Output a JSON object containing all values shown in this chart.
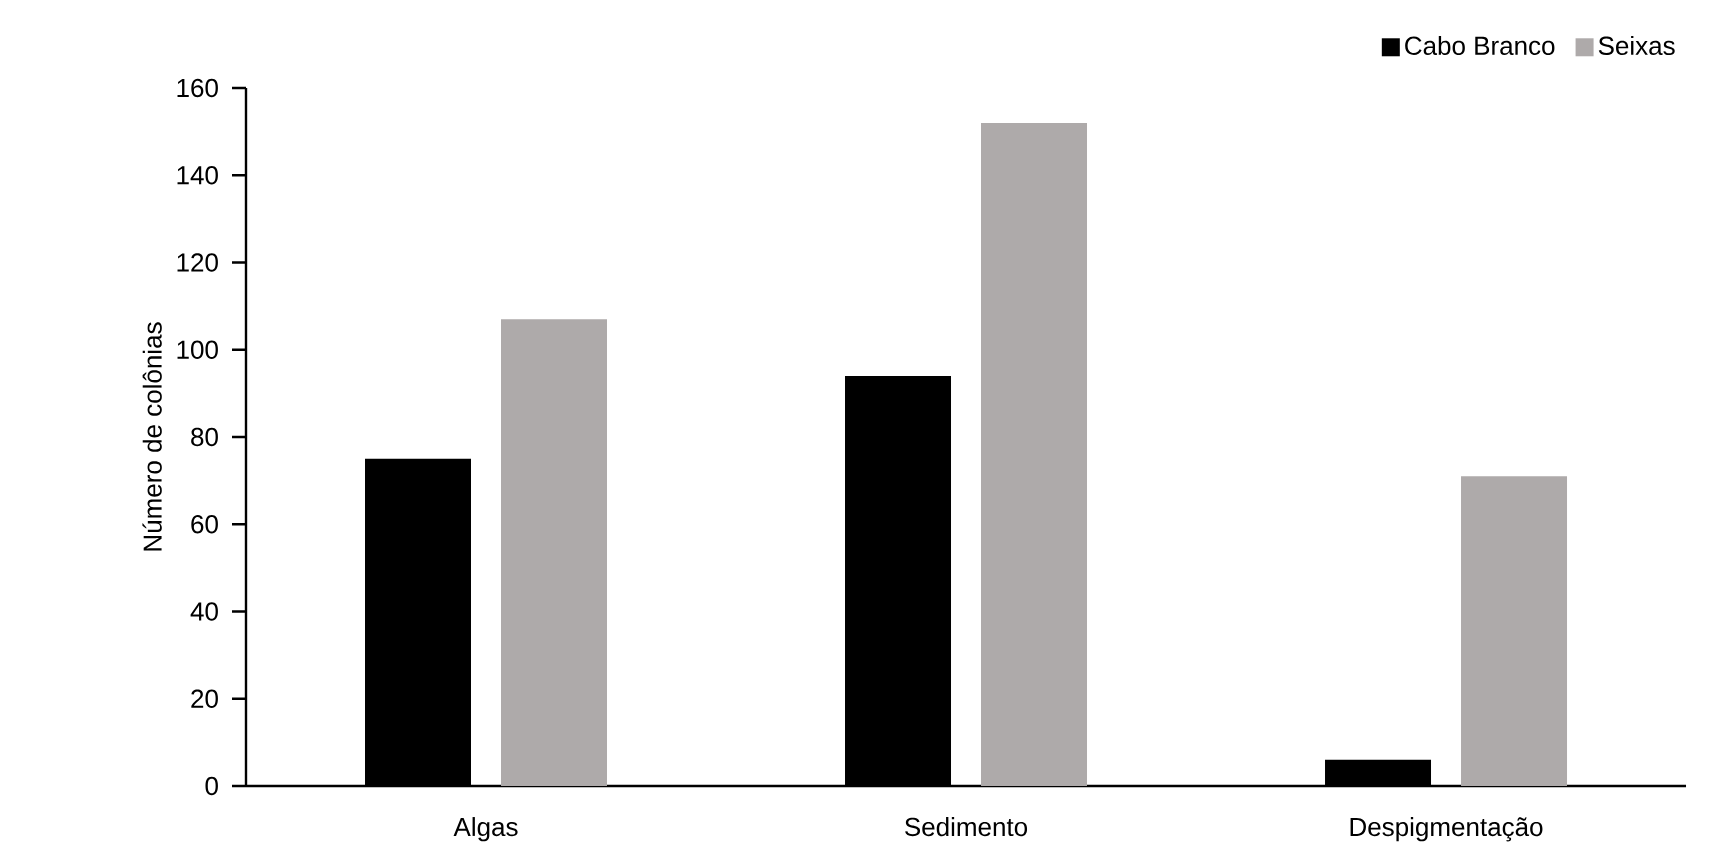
{
  "chart_data": {
    "type": "bar",
    "ylabel": "Número de colônias",
    "categories": [
      "Algas",
      "Sedimento",
      "Despigmentação"
    ],
    "series": [
      {
        "name": "Cabo Branco",
        "color": "#000000",
        "values": [
          75,
          94,
          6
        ]
      },
      {
        "name": "Seixas",
        "color": "#aeaaaa",
        "values": [
          107,
          152,
          71
        ]
      }
    ],
    "ylim": [
      0,
      160
    ],
    "yticks": [
      0,
      20,
      40,
      60,
      80,
      100,
      120,
      140,
      160
    ],
    "legend": "top right",
    "grid": false
  }
}
